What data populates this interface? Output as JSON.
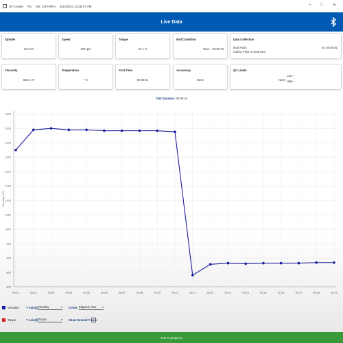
{
  "titlebar": {
    "app": "DV Create",
    "tab": "RV",
    "serial": "SN: ZNV-WFV",
    "datetime": "6/12/2023 11:08:27 AM"
  },
  "header": {
    "title": "Live Data",
    "icon": "bluetooth-icon",
    "color": "#0059b3"
  },
  "cards": {
    "spindle": {
      "label": "Spindle",
      "value": "SC4-27"
    },
    "speed": {
      "label": "Speed",
      "value": "100 rpm"
    },
    "torque": {
      "label": "Torque",
      "value": "37.4 %"
    },
    "end_condition": {
      "label": "End Condition",
      "value": "Time = 00:00:10"
    },
    "data_collection": {
      "label": "Data Collection",
      "line1": "Multi Point",
      "line2": "Collect Point At Step End",
      "right": "Inc 00:00:01"
    },
    "viscosity": {
      "label": "Viscosity",
      "value": "835.3 cP"
    },
    "temperature": {
      "label": "Temperature",
      "value": "--°C"
    },
    "first_time": {
      "label": "First Time",
      "value": "00:00:01"
    },
    "accessory": {
      "label": "Accessory",
      "value": "None"
    },
    "qc_limits": {
      "label": "QC Limits",
      "value": "None",
      "low": "Low  --",
      "high": "High  --"
    }
  },
  "test_duration": {
    "label": "Test Duration:",
    "value": "00:00:19"
  },
  "chart_data": {
    "type": "line",
    "ylabel": "Viscosity (cP)",
    "ylim": [
      800,
      1410
    ],
    "yticks": [
      800,
      850,
      900,
      950,
      1000,
      1050,
      1100,
      1150,
      1200,
      1250,
      1300,
      1350,
      1400
    ],
    "ytick_labels": [
      "800",
      "850",
      "900",
      "950",
      "1000",
      "1050",
      "1100",
      "1150",
      "1200",
      "1250",
      "1300",
      "1350",
      "1400"
    ],
    "categories": [
      "00:01",
      "00:02",
      "00:03",
      "00:04",
      "00:05",
      "00:06",
      "00:07",
      "00:08",
      "00:09",
      "00:10",
      "00:11",
      "00:12",
      "00:13",
      "00:14",
      "00:15",
      "00:16",
      "00:17",
      "00:18",
      "00:19"
    ],
    "series": [
      {
        "name": "Viscosity",
        "color": "#1a1a9c",
        "values": [
          1275,
          1345,
          1350,
          1345,
          1345,
          1342,
          1342,
          1342,
          1342,
          1338,
          840,
          878,
          882,
          880,
          882,
          882,
          882,
          884,
          884
        ]
      }
    ],
    "grid": true
  },
  "controls": {
    "row1": {
      "series": "Viscosity",
      "swatch": "#1a1a9c",
      "y_axis_label": "Y Axis(1)",
      "y_axis_value": "Viscosity",
      "x_axis_label": "X Axis",
      "x_axis_value": "Elapsed Time"
    },
    "row2": {
      "series": "Torque",
      "swatch": "#d62020",
      "y_axis_label": "Y Axis(2)",
      "y_axis_value": "Torque",
      "second_axis_label": "Show Second Y Axis"
    }
  },
  "progress": {
    "label": "Test in progress",
    "color": "#3a9a3a"
  }
}
